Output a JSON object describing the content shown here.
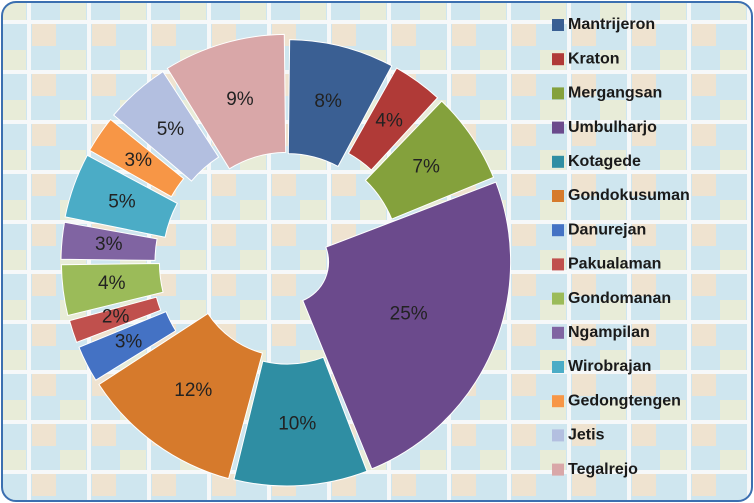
{
  "chart_data": {
    "type": "doughnut",
    "categories": [
      "Mantrijeron",
      "Kraton",
      "Mergangsan",
      "Umbulharjo",
      "Kotagede",
      "Gondokusuman",
      "Danurejan",
      "Pakualaman",
      "Gondomanan",
      "Ngampilan",
      "Wirobrajan",
      "Gedongtengen",
      "Jetis",
      "Tegalrejo"
    ],
    "values": [
      8,
      4,
      7,
      25,
      10,
      12,
      3,
      2,
      4,
      3,
      5,
      3,
      5,
      9
    ],
    "value_labels": [
      "8%",
      "4%",
      "7%",
      "25%",
      "10%",
      "12%",
      "3%",
      "2%",
      "4%",
      "3%",
      "5%",
      "3%",
      "5%",
      "9%"
    ],
    "colors": [
      "#3a5f93",
      "#b03a37",
      "#84a13c",
      "#6b4a8c",
      "#2f8ea3",
      "#d67a2c",
      "#4472c4",
      "#c0504d",
      "#9bbb59",
      "#8064a2",
      "#4bacc6",
      "#f79646",
      "#b3bfe0",
      "#d9a7a8"
    ],
    "legend": "right"
  }
}
